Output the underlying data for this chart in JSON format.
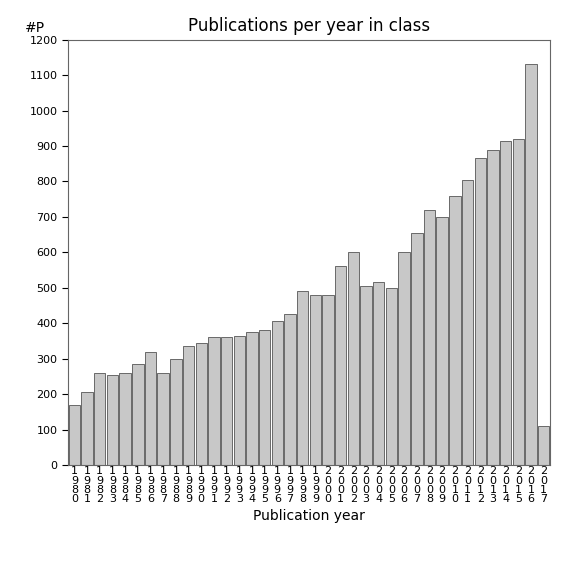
{
  "title": "Publications per year in class",
  "xlabel": "Publication year",
  "ylabel": "#P",
  "years": [
    1980,
    1981,
    1982,
    1983,
    1984,
    1985,
    1986,
    1987,
    1988,
    1989,
    1990,
    1991,
    1992,
    1993,
    1994,
    1995,
    1996,
    1997,
    1998,
    1999,
    2000,
    2001,
    2002,
    2003,
    2004,
    2005,
    2006,
    2007,
    2008,
    2009,
    2010,
    2011,
    2012,
    2013,
    2014,
    2015,
    2016,
    2017
  ],
  "values": [
    170,
    207,
    260,
    255,
    260,
    285,
    320,
    260,
    300,
    335,
    345,
    360,
    360,
    365,
    375,
    380,
    405,
    425,
    490,
    480,
    480,
    560,
    600,
    505,
    515,
    500,
    600,
    655,
    720,
    700,
    760,
    805,
    865,
    890,
    915,
    920,
    1130,
    110
  ],
  "bar_color": "#c8c8c8",
  "bar_edgecolor": "#555555",
  "ylim": [
    0,
    1200
  ],
  "yticks": [
    0,
    100,
    200,
    300,
    400,
    500,
    600,
    700,
    800,
    900,
    1000,
    1100,
    1200
  ],
  "bg_color": "#ffffff",
  "title_fontsize": 12,
  "xlabel_fontsize": 10,
  "ylabel_fontsize": 10,
  "tick_fontsize": 8,
  "bar_width": 0.9
}
